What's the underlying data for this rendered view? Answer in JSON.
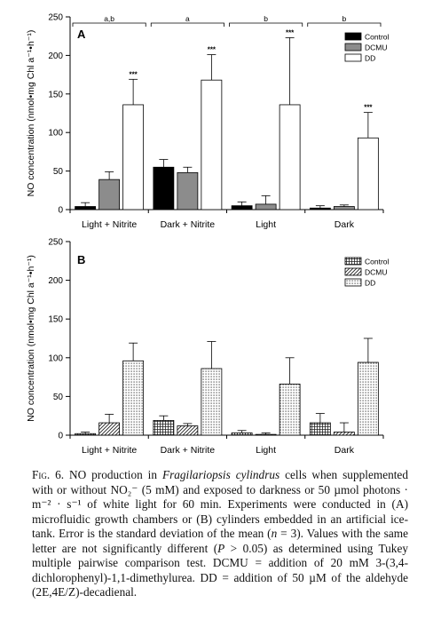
{
  "chart_data": [
    {
      "panel_label": "A",
      "type": "bar",
      "ylabel": "NO concentration (nmol•mg Chl a⁻¹•h⁻¹)",
      "ylim": [
        0,
        250
      ],
      "yticks": [
        0,
        50,
        100,
        150,
        200,
        250
      ],
      "categories": [
        "Light + Nitrite",
        "Dark + Nitrite",
        "Light",
        "Dark"
      ],
      "group_letters": [
        "a,b",
        "a",
        "b",
        "b"
      ],
      "legend_position": "top-right",
      "series": [
        {
          "name": "Control",
          "fill": "#000000",
          "values": [
            4,
            55,
            5,
            2
          ],
          "errors": [
            5,
            10,
            5,
            3
          ],
          "significance": [
            "",
            "",
            "",
            ""
          ]
        },
        {
          "name": "DCMU",
          "fill": "#8c8c8c",
          "values": [
            39,
            48,
            7,
            4
          ],
          "errors": [
            10,
            7,
            11,
            2
          ],
          "significance": [
            "",
            "",
            "",
            ""
          ]
        },
        {
          "name": "DD",
          "fill": "#ffffff",
          "values": [
            136,
            168,
            136,
            93
          ],
          "errors": [
            33,
            33,
            87,
            33
          ],
          "significance": [
            "***",
            "***",
            "***",
            "***"
          ]
        }
      ]
    },
    {
      "panel_label": "B",
      "type": "bar",
      "ylabel": "NO concentration (nmol•mg Chl a⁻¹•h⁻¹)",
      "ylim": [
        0,
        250
      ],
      "yticks": [
        0,
        50,
        100,
        150,
        200,
        250
      ],
      "categories": [
        "Light + Nitrite",
        "Dark + Nitrite",
        "Light",
        "Dark"
      ],
      "legend_position": "top-right",
      "series": [
        {
          "name": "Control",
          "pattern": "grid",
          "values": [
            2,
            19,
            3,
            16
          ],
          "errors": [
            2,
            6,
            3,
            12
          ]
        },
        {
          "name": "DCMU",
          "pattern": "hatch",
          "values": [
            16,
            12,
            1,
            4
          ],
          "errors": [
            11,
            3,
            2,
            12
          ]
        },
        {
          "name": "DD",
          "pattern": "dots",
          "values": [
            96,
            86,
            66,
            94
          ],
          "errors": [
            23,
            35,
            34,
            31
          ]
        }
      ]
    }
  ],
  "caption": {
    "label": "Fig. 6.",
    "part1": " NO production in ",
    "species": "Fragilariopsis cylindrus",
    "part2": " cells when supplemented with or without NO₂⁻ (5 mM) and exposed to darkness or 50 µmol photons · m⁻² · s⁻¹ of white light for 60 min. Experiments were conducted in (A) microfluidic growth chambers or (B) cylinders embedded in an artificial ice-tank. Error is the standard deviation of the mean (",
    "n_var": "n",
    "part3": " = 3). Values with the same letter are not significantly different (",
    "p_var": "P",
    "part4": " > 0.05) as determined using Tukey multiple pairwise comparison test. DCMU = addition of 20 mM 3-(3,4-dichlorophenyl)-1,1-dimethylurea. DD = addition of 50 µM of the aldehyde (2E,4E/Z)-decadienal."
  }
}
